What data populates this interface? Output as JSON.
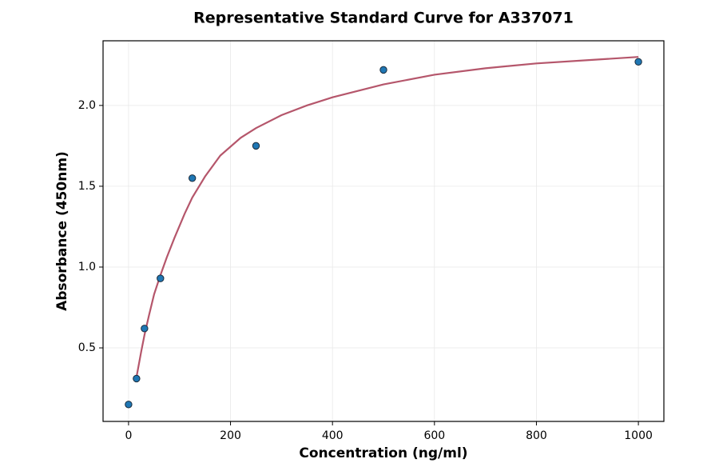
{
  "chart_data": {
    "type": "scatter",
    "title": "Representative Standard Curve for A337071",
    "xlabel": "Concentration (ng/ml)",
    "ylabel": "Absorbance (450nm)",
    "xlim": [
      -50,
      1050
    ],
    "ylim": [
      0.045,
      2.4
    ],
    "xticks": [
      0,
      200,
      400,
      600,
      800,
      1000
    ],
    "yticks": [
      {
        "value": 0.5,
        "label": "0.5"
      },
      {
        "value": 1.0,
        "label": "1.0"
      },
      {
        "value": 1.5,
        "label": "1.5"
      },
      {
        "value": 2.0,
        "label": "2.0"
      }
    ],
    "grid": true,
    "series": [
      {
        "type": "scatter",
        "color": "#1f77b4",
        "x": [
          0,
          15.625,
          31.25,
          62.5,
          125,
          250,
          500,
          1000
        ],
        "values": [
          0.15,
          0.31,
          0.62,
          0.93,
          1.55,
          1.75,
          2.22,
          2.27
        ]
      },
      {
        "type": "line",
        "color": "#b5566b",
        "x": [
          15.625,
          25,
          31.25,
          40,
          50,
          62.5,
          75,
          90,
          110,
          125,
          150,
          180,
          220,
          250,
          300,
          350,
          400,
          500,
          600,
          700,
          800,
          900,
          1000
        ],
        "values": [
          0.32,
          0.48,
          0.58,
          0.7,
          0.83,
          0.95,
          1.06,
          1.18,
          1.33,
          1.43,
          1.56,
          1.69,
          1.8,
          1.86,
          1.94,
          2.0,
          2.05,
          2.13,
          2.19,
          2.23,
          2.26,
          2.28,
          2.3
        ]
      }
    ]
  }
}
